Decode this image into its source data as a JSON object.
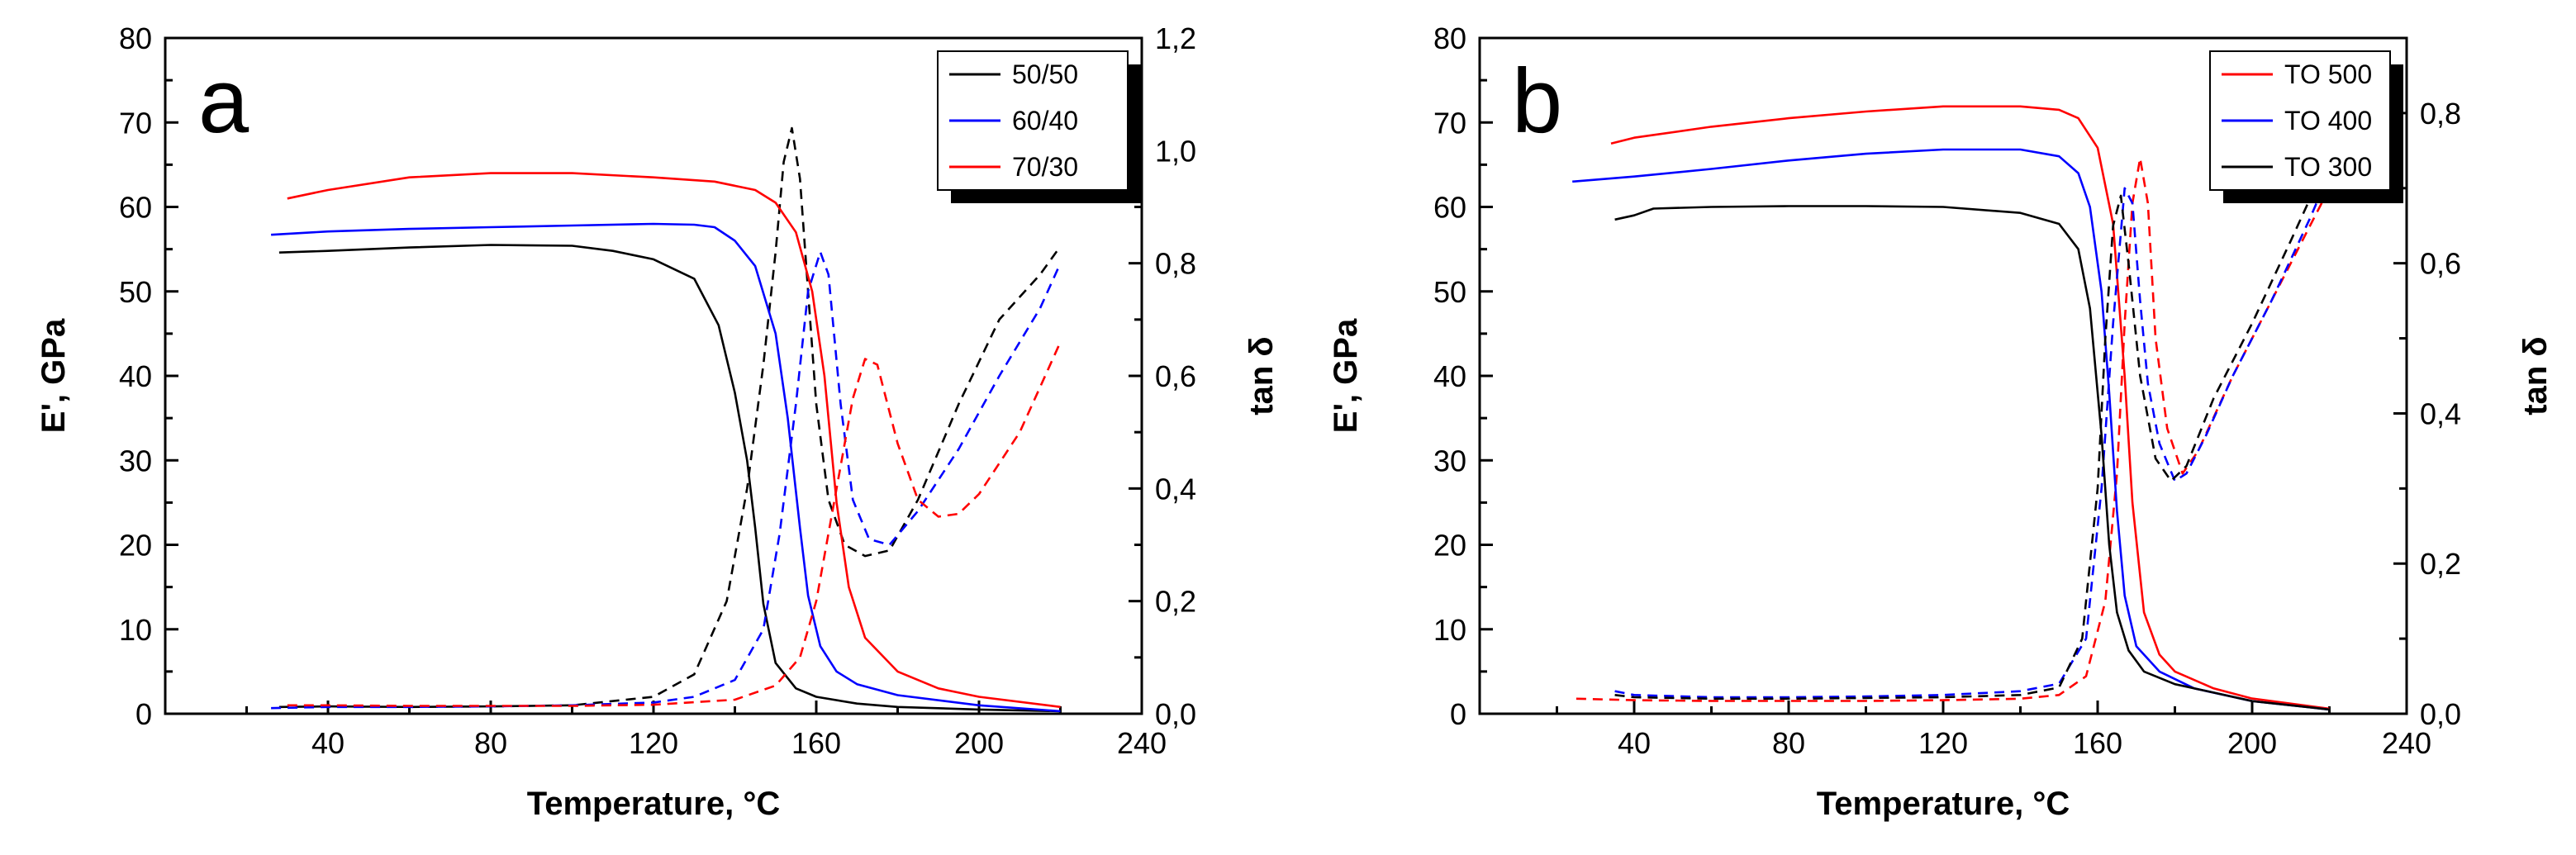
{
  "chart_data": [
    {
      "type": "line",
      "panel_label": "a",
      "xlabel": "Temperature, °C",
      "ylabel_left": "E', GPa",
      "ylabel_right": "tan δ",
      "xlim": [
        0,
        240
      ],
      "ylim_left": [
        0,
        80
      ],
      "ylim_right": [
        0,
        1.2
      ],
      "xticks": [
        "40",
        "80",
        "120",
        "160",
        "200",
        "240"
      ],
      "yticks_left": [
        "0",
        "10",
        "20",
        "30",
        "40",
        "50",
        "60",
        "70",
        "80"
      ],
      "yticks_right": [
        "0,0",
        "0,2",
        "0,4",
        "0,6",
        "0,8",
        "1,0",
        "1,2"
      ],
      "legend_placement": "top-right",
      "grid": false,
      "series": [
        {
          "name": "50/50",
          "color": "#000000",
          "modulus": [
            [
              28,
              54.6
            ],
            [
              40,
              54.8
            ],
            [
              60,
              55.2
            ],
            [
              80,
              55.5
            ],
            [
              100,
              55.4
            ],
            [
              110,
              54.8
            ],
            [
              120,
              53.8
            ],
            [
              130,
              51.5
            ],
            [
              136,
              46
            ],
            [
              140,
              38
            ],
            [
              143,
              30
            ],
            [
              145,
              22
            ],
            [
              147,
              13
            ],
            [
              150,
              6
            ],
            [
              155,
              3
            ],
            [
              160,
              2
            ],
            [
              170,
              1.2
            ],
            [
              180,
              0.8
            ],
            [
              200,
              0.5
            ],
            [
              220,
              0.3
            ]
          ],
          "tan_delta": [
            [
              28,
              0.012
            ],
            [
              40,
              0.013
            ],
            [
              60,
              0.012
            ],
            [
              80,
              0.013
            ],
            [
              100,
              0.015
            ],
            [
              120,
              0.03
            ],
            [
              130,
              0.07
            ],
            [
              138,
              0.2
            ],
            [
              143,
              0.4
            ],
            [
              147,
              0.62
            ],
            [
              150,
              0.82
            ],
            [
              152,
              0.98
            ],
            [
              154,
              1.04
            ],
            [
              156,
              0.95
            ],
            [
              158,
              0.75
            ],
            [
              160,
              0.55
            ],
            [
              163,
              0.38
            ],
            [
              167,
              0.3
            ],
            [
              172,
              0.28
            ],
            [
              178,
              0.29
            ],
            [
              185,
              0.38
            ],
            [
              195,
              0.55
            ],
            [
              205,
              0.7
            ],
            [
              215,
              0.78
            ],
            [
              220,
              0.83
            ]
          ]
        },
        {
          "name": "60/40",
          "color": "#0000ff",
          "modulus": [
            [
              26,
              56.7
            ],
            [
              40,
              57.1
            ],
            [
              60,
              57.4
            ],
            [
              80,
              57.6
            ],
            [
              100,
              57.8
            ],
            [
              120,
              58
            ],
            [
              130,
              57.9
            ],
            [
              135,
              57.6
            ],
            [
              140,
              56
            ],
            [
              145,
              53
            ],
            [
              150,
              45
            ],
            [
              153,
              35
            ],
            [
              156,
              22
            ],
            [
              158,
              14
            ],
            [
              161,
              8
            ],
            [
              165,
              5
            ],
            [
              170,
              3.5
            ],
            [
              180,
              2.2
            ],
            [
              200,
              1
            ],
            [
              220,
              0.3
            ]
          ],
          "tan_delta": [
            [
              26,
              0.01
            ],
            [
              40,
              0.012
            ],
            [
              60,
              0.012
            ],
            [
              80,
              0.013
            ],
            [
              100,
              0.015
            ],
            [
              120,
              0.02
            ],
            [
              130,
              0.03
            ],
            [
              140,
              0.06
            ],
            [
              147,
              0.15
            ],
            [
              151,
              0.32
            ],
            [
              155,
              0.55
            ],
            [
              158,
              0.75
            ],
            [
              161,
              0.82
            ],
            [
              163,
              0.78
            ],
            [
              166,
              0.55
            ],
            [
              169,
              0.38
            ],
            [
              173,
              0.31
            ],
            [
              178,
              0.3
            ],
            [
              185,
              0.36
            ],
            [
              195,
              0.47
            ],
            [
              205,
              0.6
            ],
            [
              215,
              0.72
            ],
            [
              220,
              0.8
            ]
          ]
        },
        {
          "name": "70/30",
          "color": "#ff0000",
          "modulus": [
            [
              30,
              61
            ],
            [
              40,
              62
            ],
            [
              60,
              63.5
            ],
            [
              80,
              64
            ],
            [
              100,
              64
            ],
            [
              120,
              63.5
            ],
            [
              135,
              63
            ],
            [
              145,
              62
            ],
            [
              150,
              60.5
            ],
            [
              155,
              57
            ],
            [
              159,
              50
            ],
            [
              162,
              40
            ],
            [
              165,
              25
            ],
            [
              168,
              15
            ],
            [
              172,
              9
            ],
            [
              180,
              5
            ],
            [
              190,
              3
            ],
            [
              200,
              2
            ],
            [
              220,
              0.8
            ]
          ],
          "tan_delta": [
            [
              30,
              0.015
            ],
            [
              40,
              0.015
            ],
            [
              60,
              0.014
            ],
            [
              80,
              0.014
            ],
            [
              100,
              0.014
            ],
            [
              120,
              0.016
            ],
            [
              140,
              0.025
            ],
            [
              150,
              0.05
            ],
            [
              156,
              0.1
            ],
            [
              160,
              0.2
            ],
            [
              165,
              0.4
            ],
            [
              169,
              0.56
            ],
            [
              172,
              0.63
            ],
            [
              175,
              0.62
            ],
            [
              180,
              0.48
            ],
            [
              185,
              0.38
            ],
            [
              190,
              0.35
            ],
            [
              195,
              0.355
            ],
            [
              200,
              0.39
            ],
            [
              210,
              0.5
            ],
            [
              220,
              0.66
            ]
          ]
        }
      ]
    },
    {
      "type": "line",
      "panel_label": "b",
      "xlabel": "Temperature, °C",
      "ylabel_left": "E', GPa",
      "ylabel_right": "tan δ",
      "xlim": [
        0,
        240
      ],
      "ylim_left": [
        0,
        80
      ],
      "ylim_right": [
        0,
        0.9
      ],
      "xticks": [
        "40",
        "80",
        "120",
        "160",
        "200",
        "240"
      ],
      "yticks_left": [
        "0",
        "10",
        "20",
        "30",
        "40",
        "50",
        "60",
        "70",
        "80"
      ],
      "yticks_right": [
        "0,0",
        "0,2",
        "0,4",
        "0,6",
        "0,8"
      ],
      "legend_placement": "top-right",
      "grid": false,
      "series": [
        {
          "name": "TO 500",
          "color": "#ff0000",
          "modulus": [
            [
              34,
              67.5
            ],
            [
              40,
              68.2
            ],
            [
              60,
              69.5
            ],
            [
              80,
              70.5
            ],
            [
              100,
              71.3
            ],
            [
              120,
              71.9
            ],
            [
              140,
              71.9
            ],
            [
              150,
              71.5
            ],
            [
              155,
              70.5
            ],
            [
              160,
              67
            ],
            [
              164,
              58
            ],
            [
              167,
              40
            ],
            [
              169,
              25
            ],
            [
              172,
              12
            ],
            [
              176,
              7
            ],
            [
              180,
              5
            ],
            [
              190,
              3
            ],
            [
              200,
              1.8
            ],
            [
              220,
              0.6
            ]
          ],
          "tan_delta": [
            [
              25,
              0.02
            ],
            [
              40,
              0.018
            ],
            [
              60,
              0.017
            ],
            [
              80,
              0.017
            ],
            [
              100,
              0.017
            ],
            [
              120,
              0.018
            ],
            [
              140,
              0.02
            ],
            [
              150,
              0.025
            ],
            [
              157,
              0.05
            ],
            [
              162,
              0.15
            ],
            [
              165,
              0.32
            ],
            [
              167,
              0.52
            ],
            [
              169,
              0.68
            ],
            [
              171,
              0.74
            ],
            [
              173,
              0.68
            ],
            [
              175,
              0.5
            ],
            [
              178,
              0.38
            ],
            [
              182,
              0.32
            ],
            [
              186,
              0.35
            ],
            [
              195,
              0.45
            ],
            [
              205,
              0.55
            ],
            [
              215,
              0.65
            ],
            [
              220,
              0.7
            ]
          ]
        },
        {
          "name": "TO 400",
          "color": "#0000ff",
          "modulus": [
            [
              24,
              63
            ],
            [
              40,
              63.6
            ],
            [
              60,
              64.5
            ],
            [
              80,
              65.5
            ],
            [
              100,
              66.3
            ],
            [
              120,
              66.8
            ],
            [
              140,
              66.8
            ],
            [
              150,
              66
            ],
            [
              155,
              64
            ],
            [
              158,
              60
            ],
            [
              161,
              50
            ],
            [
              163,
              38
            ],
            [
              165,
              24
            ],
            [
              167,
              14
            ],
            [
              170,
              8
            ],
            [
              176,
              5
            ],
            [
              185,
              3
            ],
            [
              200,
              1.5
            ],
            [
              220,
              0.5
            ]
          ],
          "tan_delta": [
            [
              35,
              0.03
            ],
            [
              40,
              0.025
            ],
            [
              60,
              0.022
            ],
            [
              80,
              0.022
            ],
            [
              100,
              0.023
            ],
            [
              120,
              0.025
            ],
            [
              140,
              0.03
            ],
            [
              150,
              0.04
            ],
            [
              157,
              0.1
            ],
            [
              161,
              0.3
            ],
            [
              164,
              0.52
            ],
            [
              167,
              0.7
            ],
            [
              169,
              0.68
            ],
            [
              171,
              0.55
            ],
            [
              173,
              0.44
            ],
            [
              176,
              0.36
            ],
            [
              180,
              0.31
            ],
            [
              183,
              0.32
            ],
            [
              188,
              0.37
            ],
            [
              195,
              0.45
            ],
            [
              205,
              0.55
            ],
            [
              215,
              0.66
            ],
            [
              220,
              0.72
            ]
          ]
        },
        {
          "name": "TO 300",
          "color": "#000000",
          "modulus": [
            [
              35,
              58.5
            ],
            [
              40,
              59
            ],
            [
              45,
              59.8
            ],
            [
              60,
              60
            ],
            [
              80,
              60.1
            ],
            [
              100,
              60.1
            ],
            [
              120,
              60
            ],
            [
              140,
              59.3
            ],
            [
              150,
              58
            ],
            [
              155,
              55
            ],
            [
              158,
              48
            ],
            [
              161,
              33
            ],
            [
              163,
              20
            ],
            [
              165,
              12
            ],
            [
              168,
              7.5
            ],
            [
              172,
              5
            ],
            [
              180,
              3.5
            ],
            [
              190,
              2.5
            ],
            [
              200,
              1.5
            ],
            [
              220,
              0.5
            ]
          ],
          "tan_delta": [
            [
              35,
              0.025
            ],
            [
              40,
              0.022
            ],
            [
              60,
              0.02
            ],
            [
              80,
              0.02
            ],
            [
              100,
              0.021
            ],
            [
              120,
              0.022
            ],
            [
              140,
              0.025
            ],
            [
              150,
              0.035
            ],
            [
              156,
              0.1
            ],
            [
              160,
              0.3
            ],
            [
              162,
              0.5
            ],
            [
              164,
              0.65
            ],
            [
              166,
              0.69
            ],
            [
              168,
              0.6
            ],
            [
              171,
              0.45
            ],
            [
              175,
              0.34
            ],
            [
              179,
              0.31
            ],
            [
              183,
              0.33
            ],
            [
              190,
              0.42
            ],
            [
              200,
              0.52
            ],
            [
              210,
              0.63
            ],
            [
              218,
              0.72
            ]
          ]
        }
      ]
    }
  ]
}
